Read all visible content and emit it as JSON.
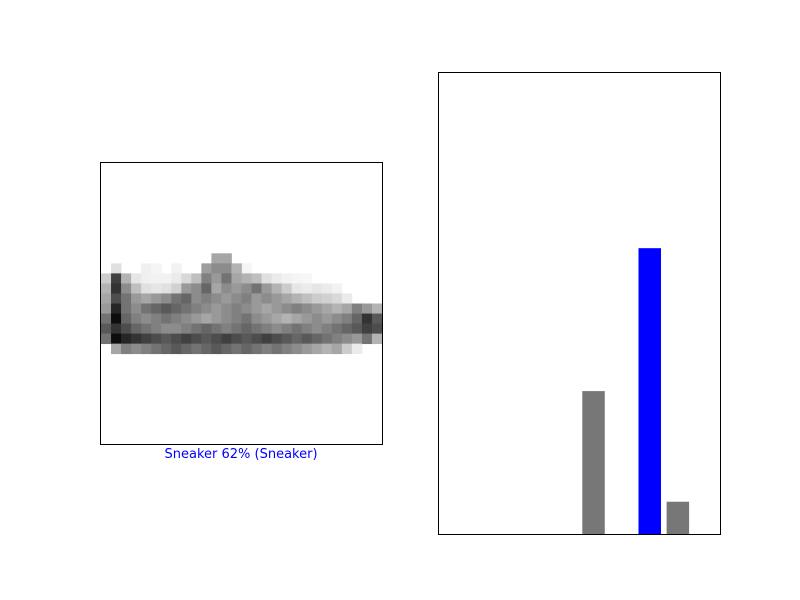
{
  "image_panel": {
    "caption": "Sneaker 62% (Sneaker)",
    "caption_color": "#0000ff",
    "colormap": "binary",
    "image_rows": 28,
    "image_cols": 28,
    "pixel_rows": [
      {
        "row": 10,
        "segments": [
          [
            1,
            1,
            0.12
          ],
          [
            4,
            1,
            0.06
          ],
          [
            5,
            1,
            0.04
          ],
          [
            7,
            1,
            0.05
          ],
          [
            10,
            1,
            0.05
          ],
          [
            12,
            1,
            0.05
          ],
          [
            14,
            1,
            0.04
          ]
        ]
      },
      {
        "row": 9,
        "segments": [
          [
            11,
            2,
            0.35
          ]
        ]
      },
      {
        "row": 10,
        "segments": [
          [
            10,
            1,
            0.38
          ],
          [
            11,
            2,
            0.45
          ],
          [
            13,
            1,
            0.3
          ]
        ]
      },
      {
        "row": 11,
        "segments": [
          [
            0,
            1,
            0.2
          ],
          [
            1,
            1,
            0.75
          ],
          [
            2,
            1,
            0.3
          ],
          [
            3,
            1,
            0.1
          ],
          [
            4,
            1,
            0.06
          ],
          [
            5,
            1,
            0.05
          ],
          [
            6,
            1,
            0.05
          ],
          [
            7,
            1,
            0.08
          ],
          [
            8,
            1,
            0.15
          ],
          [
            9,
            1,
            0.25
          ],
          [
            10,
            1,
            0.5
          ],
          [
            11,
            1,
            0.4
          ],
          [
            12,
            1,
            0.55
          ],
          [
            13,
            1,
            0.35
          ],
          [
            14,
            1,
            0.3
          ],
          [
            15,
            1,
            0.25
          ],
          [
            16,
            1,
            0.12
          ],
          [
            17,
            1,
            0.08
          ],
          [
            18,
            1,
            0.05
          ],
          [
            19,
            1,
            0.04
          ],
          [
            20,
            1,
            0.03
          ]
        ]
      },
      {
        "row": 12,
        "segments": [
          [
            0,
            1,
            0.3
          ],
          [
            1,
            1,
            0.8
          ],
          [
            2,
            1,
            0.45
          ],
          [
            3,
            1,
            0.25
          ],
          [
            4,
            1,
            0.12
          ],
          [
            5,
            1,
            0.1
          ],
          [
            6,
            1,
            0.12
          ],
          [
            7,
            1,
            0.18
          ],
          [
            8,
            1,
            0.4
          ],
          [
            9,
            1,
            0.45
          ],
          [
            10,
            1,
            0.6
          ],
          [
            11,
            1,
            0.35
          ],
          [
            12,
            1,
            0.45
          ],
          [
            13,
            1,
            0.4
          ],
          [
            14,
            1,
            0.45
          ],
          [
            15,
            1,
            0.55
          ],
          [
            16,
            1,
            0.4
          ],
          [
            17,
            1,
            0.3
          ],
          [
            18,
            1,
            0.2
          ],
          [
            19,
            1,
            0.1
          ],
          [
            20,
            1,
            0.08
          ],
          [
            21,
            1,
            0.1
          ],
          [
            22,
            1,
            0.08
          ],
          [
            23,
            1,
            0.05
          ]
        ]
      },
      {
        "row": 13,
        "segments": [
          [
            0,
            1,
            0.35
          ],
          [
            1,
            1,
            0.7
          ],
          [
            2,
            1,
            0.55
          ],
          [
            3,
            1,
            0.4
          ],
          [
            4,
            1,
            0.35
          ],
          [
            5,
            1,
            0.4
          ],
          [
            6,
            1,
            0.45
          ],
          [
            7,
            1,
            0.55
          ],
          [
            8,
            1,
            0.6
          ],
          [
            9,
            1,
            0.45
          ],
          [
            10,
            1,
            0.5
          ],
          [
            11,
            1,
            0.45
          ],
          [
            12,
            1,
            0.4
          ],
          [
            13,
            1,
            0.45
          ],
          [
            14,
            1,
            0.5
          ],
          [
            15,
            1,
            0.4
          ],
          [
            16,
            1,
            0.45
          ],
          [
            17,
            1,
            0.4
          ],
          [
            18,
            1,
            0.35
          ],
          [
            19,
            1,
            0.3
          ],
          [
            20,
            1,
            0.25
          ],
          [
            21,
            1,
            0.2
          ],
          [
            22,
            1,
            0.18
          ],
          [
            23,
            1,
            0.15
          ],
          [
            24,
            1,
            0.08
          ]
        ]
      },
      {
        "row": 14,
        "segments": [
          [
            0,
            1,
            0.4
          ],
          [
            1,
            1,
            0.85
          ],
          [
            2,
            1,
            0.55
          ],
          [
            3,
            1,
            0.45
          ],
          [
            4,
            1,
            0.55
          ],
          [
            5,
            1,
            0.6
          ],
          [
            6,
            1,
            0.65
          ],
          [
            7,
            1,
            0.6
          ],
          [
            8,
            1,
            0.55
          ],
          [
            9,
            1,
            0.5
          ],
          [
            10,
            1,
            0.45
          ],
          [
            11,
            1,
            0.4
          ],
          [
            12,
            1,
            0.45
          ],
          [
            13,
            1,
            0.5
          ],
          [
            14,
            1,
            0.45
          ],
          [
            15,
            1,
            0.4
          ],
          [
            16,
            1,
            0.35
          ],
          [
            17,
            1,
            0.4
          ],
          [
            18,
            1,
            0.45
          ],
          [
            19,
            1,
            0.5
          ],
          [
            20,
            1,
            0.45
          ],
          [
            21,
            1,
            0.4
          ],
          [
            22,
            1,
            0.35
          ],
          [
            23,
            1,
            0.3
          ],
          [
            24,
            1,
            0.35
          ],
          [
            25,
            1,
            0.5
          ],
          [
            26,
            1,
            0.4
          ],
          [
            27,
            1,
            0.3
          ]
        ]
      },
      {
        "row": 15,
        "segments": [
          [
            0,
            1,
            0.55
          ],
          [
            1,
            1,
            0.95
          ],
          [
            2,
            1,
            0.6
          ],
          [
            3,
            1,
            0.5
          ],
          [
            4,
            1,
            0.45
          ],
          [
            5,
            1,
            0.5
          ],
          [
            6,
            1,
            0.55
          ],
          [
            7,
            1,
            0.5
          ],
          [
            8,
            1,
            0.45
          ],
          [
            9,
            1,
            0.4
          ],
          [
            10,
            1,
            0.35
          ],
          [
            11,
            1,
            0.4
          ],
          [
            12,
            1,
            0.45
          ],
          [
            13,
            1,
            0.5
          ],
          [
            14,
            1,
            0.55
          ],
          [
            15,
            1,
            0.45
          ],
          [
            16,
            1,
            0.4
          ],
          [
            17,
            1,
            0.35
          ],
          [
            18,
            1,
            0.3
          ],
          [
            19,
            1,
            0.35
          ],
          [
            20,
            1,
            0.4
          ],
          [
            21,
            1,
            0.45
          ],
          [
            22,
            1,
            0.4
          ],
          [
            23,
            1,
            0.45
          ],
          [
            24,
            1,
            0.5
          ],
          [
            25,
            1,
            0.6
          ],
          [
            26,
            1,
            0.8
          ],
          [
            27,
            1,
            0.65
          ]
        ]
      },
      {
        "row": 16,
        "segments": [
          [
            0,
            1,
            0.65
          ],
          [
            1,
            1,
            0.8
          ],
          [
            2,
            1,
            0.7
          ],
          [
            3,
            1,
            0.6
          ],
          [
            4,
            1,
            0.55
          ],
          [
            5,
            1,
            0.5
          ],
          [
            6,
            1,
            0.45
          ],
          [
            7,
            1,
            0.45
          ],
          [
            8,
            1,
            0.5
          ],
          [
            9,
            1,
            0.55
          ],
          [
            10,
            1,
            0.6
          ],
          [
            11,
            1,
            0.55
          ],
          [
            12,
            1,
            0.5
          ],
          [
            13,
            1,
            0.55
          ],
          [
            14,
            1,
            0.6
          ],
          [
            15,
            1,
            0.55
          ],
          [
            16,
            1,
            0.5
          ],
          [
            17,
            1,
            0.45
          ],
          [
            18,
            1,
            0.5
          ],
          [
            19,
            1,
            0.55
          ],
          [
            20,
            1,
            0.5
          ],
          [
            21,
            1,
            0.45
          ],
          [
            22,
            1,
            0.5
          ],
          [
            23,
            1,
            0.55
          ],
          [
            24,
            1,
            0.6
          ],
          [
            25,
            1,
            0.65
          ],
          [
            26,
            1,
            0.75
          ],
          [
            27,
            1,
            0.7
          ]
        ]
      },
      {
        "row": 17,
        "segments": [
          [
            0,
            1,
            0.55
          ],
          [
            1,
            1,
            0.95
          ],
          [
            2,
            1,
            0.85
          ],
          [
            3,
            1,
            0.8
          ],
          [
            4,
            1,
            0.75
          ],
          [
            5,
            1,
            0.7
          ],
          [
            6,
            1,
            0.65
          ],
          [
            7,
            1,
            0.7
          ],
          [
            8,
            1,
            0.75
          ],
          [
            9,
            1,
            0.7
          ],
          [
            10,
            1,
            0.65
          ],
          [
            11,
            1,
            0.7
          ],
          [
            12,
            1,
            0.75
          ],
          [
            13,
            1,
            0.7
          ],
          [
            14,
            1,
            0.65
          ],
          [
            15,
            1,
            0.7
          ],
          [
            16,
            1,
            0.75
          ],
          [
            17,
            1,
            0.7
          ],
          [
            18,
            1,
            0.65
          ],
          [
            19,
            1,
            0.6
          ],
          [
            20,
            1,
            0.65
          ],
          [
            21,
            1,
            0.6
          ],
          [
            22,
            1,
            0.55
          ],
          [
            23,
            1,
            0.5
          ],
          [
            24,
            1,
            0.45
          ],
          [
            25,
            1,
            0.4
          ],
          [
            26,
            1,
            0.55
          ],
          [
            27,
            1,
            0.3
          ]
        ]
      },
      {
        "row": 18,
        "segments": [
          [
            1,
            1,
            0.35
          ],
          [
            2,
            1,
            0.5
          ],
          [
            3,
            1,
            0.45
          ],
          [
            4,
            1,
            0.5
          ],
          [
            5,
            1,
            0.55
          ],
          [
            6,
            1,
            0.6
          ],
          [
            7,
            1,
            0.65
          ],
          [
            8,
            1,
            0.6
          ],
          [
            9,
            1,
            0.55
          ],
          [
            10,
            1,
            0.6
          ],
          [
            11,
            1,
            0.65
          ],
          [
            12,
            1,
            0.6
          ],
          [
            13,
            1,
            0.55
          ],
          [
            14,
            1,
            0.6
          ],
          [
            15,
            1,
            0.55
          ],
          [
            16,
            1,
            0.5
          ],
          [
            17,
            1,
            0.55
          ],
          [
            18,
            1,
            0.5
          ],
          [
            19,
            1,
            0.45
          ],
          [
            20,
            1,
            0.4
          ],
          [
            21,
            1,
            0.35
          ],
          [
            22,
            1,
            0.3
          ],
          [
            23,
            1,
            0.35
          ],
          [
            24,
            1,
            0.2
          ],
          [
            25,
            1,
            0.08
          ]
        ]
      }
    ]
  },
  "chart_data": {
    "type": "bar",
    "categories": [
      0,
      1,
      2,
      3,
      4,
      5,
      6,
      7,
      8,
      9
    ],
    "values": [
      0,
      0,
      0,
      0,
      0,
      0.31,
      0,
      0.62,
      0.07,
      0
    ],
    "ylim": [
      0,
      1
    ],
    "xlim": [
      -0.5,
      9.5
    ],
    "ticks_shown": false,
    "bar_color": "#777777",
    "highlight_index": 7,
    "highlight_color": "#0000ff"
  }
}
